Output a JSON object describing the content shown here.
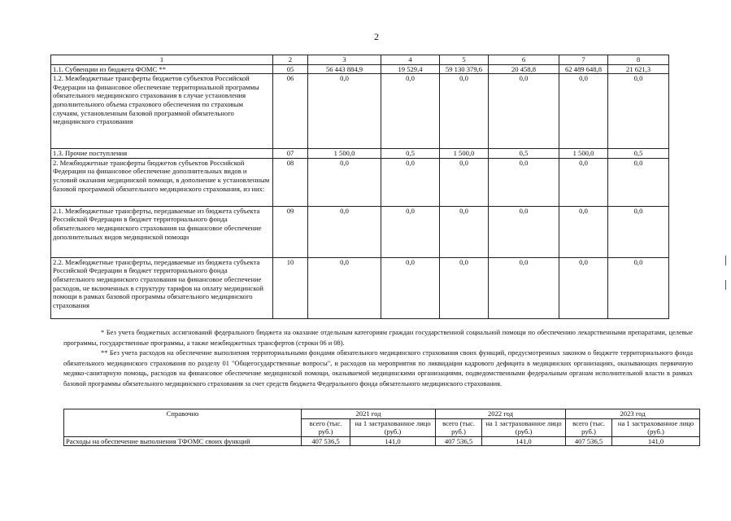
{
  "page_number": "2",
  "main_table": {
    "header": [
      "1",
      "2",
      "3",
      "4",
      "5",
      "6",
      "7",
      "8"
    ],
    "rows": [
      {
        "name": "1.1. Субвенции из бюджета ФОМС **",
        "code": "05",
        "values": [
          "56 443 884,9",
          "19 529,4",
          "59 130 379,6",
          "20 458,8",
          "62 489 648,8",
          "21 621,3"
        ]
      },
      {
        "name": "1.2. Межбюджетные трансферты бюджетов субъектов Российской Федерации на финансовое обеспечение территориальной программы обязательного медицинского страхования в случае установления дополнительного объема страхового обеспечения по страховым случаям, установленным базовой программой обязательного медицинского страхования",
        "code": "06",
        "values": [
          "0,0",
          "0,0",
          "0,0",
          "0,0",
          "0,0",
          "0,0"
        ]
      },
      {
        "name": "1.3. Прочие поступления",
        "code": "07",
        "values": [
          "1 500,0",
          "0,5",
          "1 500,0",
          "0,5",
          "1 500,0",
          "0,5"
        ]
      },
      {
        "name": "2. Межбюджетные трансферты бюджетов субъектов Российской Федерации на финансовое обеспечение дополнительных видов и условий оказания медицинской помощи, в дополнение к установленным базовой программой обязательного медицинского страхования, из них:",
        "code": "08",
        "values": [
          "0,0",
          "0,0",
          "0,0",
          "0,0",
          "0,0",
          "0,0"
        ]
      },
      {
        "name": "2.1. Межбюджетные трансферты, передаваемые из бюджета субъекта Российской Федерации в бюджет территориального фонда обязательного медицинского страхования на финансовое обеспечение дополнительных видов медицинской помощи",
        "code": "09",
        "values": [
          "0,0",
          "0,0",
          "0,0",
          "0,0",
          "0,0",
          "0,0"
        ]
      },
      {
        "name": "2.2. Межбюджетные трансферты, передаваемые из бюджета субъекта Российской Федерации в бюджет территориального фонда обязательного медицинского страхования на финансовое обеспечение расходов, не включенных в структуру тарифов на оплату медицинской помощи в рамках базовой программы обязательного медицинского страхования",
        "code": "10",
        "values": [
          "0,0",
          "0,0",
          "0,0",
          "0,0",
          "0,0",
          "0,0"
        ]
      }
    ]
  },
  "footnotes": [
    "* Без учета бюджетных ассигнований федерального бюджета на оказание отдельным категориям граждан государственной социальной помощи по обеспечению лекарственными препаратами, целевые программы, государственные программы, а также межбюджетных трансфертов (строки 06 и 08).",
    "** Без учета расходов на обеспечение выполнения территориальными фондами обязательного медицинского страхования своих функций, предусмотренных законом о бюджете территориального фонда обязательного медицинского страхования по разделу 01 \"Общегосударственные вопросы\", и расходов на мероприятия по ликвидации кадрового дефицита в медицинских организациях, оказывающих первичную медико-санитарную помощь, расходов на финансовое обеспечение медицинской помощи, оказываемой медицинскими организациями, подведомственными федеральным органам исполнительной власти в рамках базовой программы обязательного медицинского страхования за счет средств бюджета Федерального фонда обязательного медицинского страхования."
  ],
  "ref_table": {
    "label": "Справочно",
    "years": [
      "2021 год",
      "2022 год",
      "2023 год"
    ],
    "sub_total": "всего (тыс. руб.)",
    "sub_per": "на 1 застрахованное лицо (руб.)",
    "row_label": "Расходы на обеспечение выполнения ТФОМС своих функций",
    "values": [
      "407 536,5",
      "141,0",
      "407 536,5",
      "141,0",
      "407 536,5",
      "141,0"
    ]
  }
}
